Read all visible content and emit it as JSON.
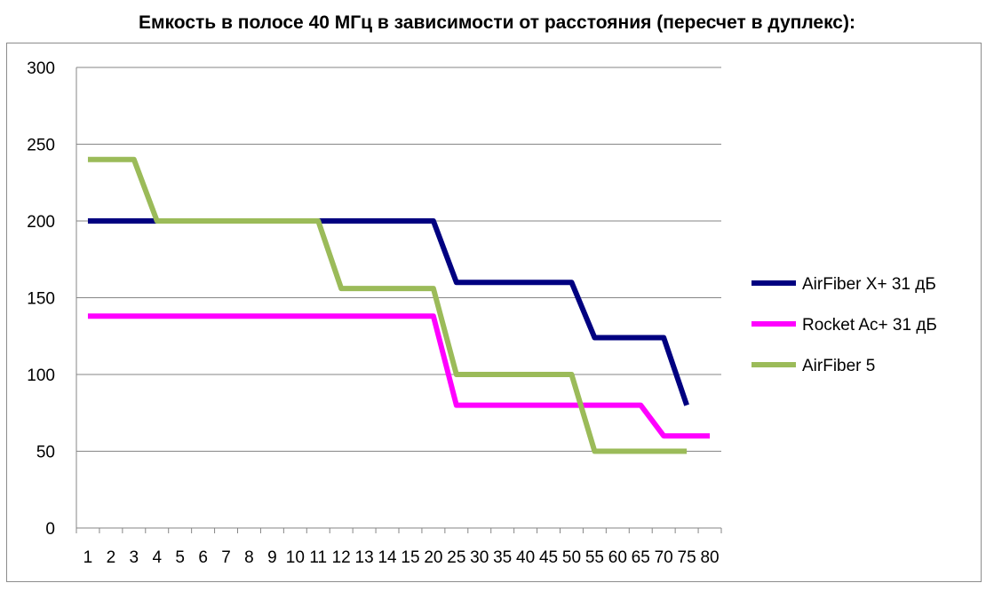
{
  "chart_data": {
    "type": "line",
    "title": "Емкость в полосе 40 МГц в зависимости от расстояния (пересчет в дуплекс):",
    "xlabel": "",
    "ylabel": "",
    "categories": [
      "1",
      "2",
      "3",
      "4",
      "5",
      "6",
      "7",
      "8",
      "9",
      "10",
      "11",
      "12",
      "13",
      "14",
      "15",
      "20",
      "25",
      "30",
      "35",
      "40",
      "45",
      "50",
      "55",
      "60",
      "65",
      "70",
      "75",
      "80"
    ],
    "ylim": [
      0,
      300
    ],
    "yticks": [
      0,
      50,
      100,
      150,
      200,
      250,
      300
    ],
    "grid": true,
    "legend_position": "right",
    "series": [
      {
        "name": "AirFiber X+ 31 дБ",
        "color": "#000080",
        "values": [
          200,
          200,
          200,
          200,
          200,
          200,
          200,
          200,
          200,
          200,
          200,
          200,
          200,
          200,
          200,
          200,
          160,
          160,
          160,
          160,
          160,
          160,
          124,
          124,
          124,
          124,
          80,
          null
        ]
      },
      {
        "name": "Rocket Ac+ 31 дБ",
        "color": "#FF00FF",
        "values": [
          138,
          138,
          138,
          138,
          138,
          138,
          138,
          138,
          138,
          138,
          138,
          138,
          138,
          138,
          138,
          138,
          80,
          80,
          80,
          80,
          80,
          80,
          80,
          80,
          80,
          60,
          60,
          60
        ]
      },
      {
        "name": "AirFiber 5",
        "color": "#9BBB59",
        "values": [
          240,
          240,
          240,
          200,
          200,
          200,
          200,
          200,
          200,
          200,
          200,
          156,
          156,
          156,
          156,
          156,
          100,
          100,
          100,
          100,
          100,
          100,
          50,
          50,
          50,
          50,
          50,
          null
        ]
      }
    ]
  }
}
